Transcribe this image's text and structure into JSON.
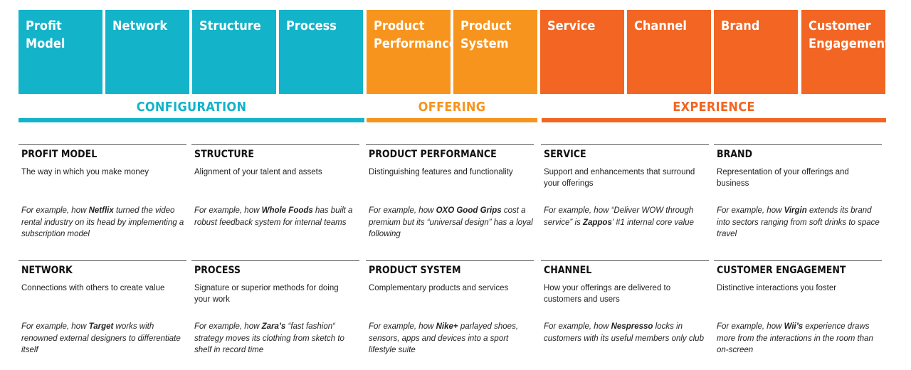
{
  "tiles": [
    {
      "label": "Profit\nModel",
      "color": "#13b3c9"
    },
    {
      "label": "Network",
      "color": "#13b3c9"
    },
    {
      "label": "Structure",
      "color": "#13b3c9"
    },
    {
      "label": "Process",
      "color": "#13b3c9"
    },
    {
      "label": "Product\nPerformance",
      "color": "#f7941d"
    },
    {
      "label": "Product\nSystem",
      "color": "#f7941d"
    },
    {
      "label": "Service",
      "color": "#f26522"
    },
    {
      "label": "Channel",
      "color": "#f26522"
    },
    {
      "label": "Brand",
      "color": "#f26522"
    },
    {
      "label": "Customer\nEngagement",
      "color": "#f26522"
    }
  ],
  "categories": [
    {
      "label": "CONFIGURATION",
      "color": "#13b3c9"
    },
    {
      "label": "OFFERING",
      "color": "#f7941d"
    },
    {
      "label": "EXPERIENCE",
      "color": "#f26522"
    }
  ],
  "cards": [
    {
      "title": "PROFIT MODEL",
      "description": "The way in which you make money",
      "example": [
        {
          "t": "For example, how "
        },
        {
          "t": "Netflix",
          "b": true
        },
        {
          "t": " turned the video rental industry on its head by implementing a subscription model"
        }
      ]
    },
    {
      "title": "STRUCTURE",
      "description": "Alignment of your talent and assets",
      "example": [
        {
          "t": "For example, how "
        },
        {
          "t": "Whole Foods",
          "b": true
        },
        {
          "t": " has built a robust feedback system for internal teams"
        }
      ]
    },
    {
      "title": "PRODUCT PERFORMANCE",
      "description": "Distinguishing features and functionality",
      "example": [
        {
          "t": "For example, how "
        },
        {
          "t": "OXO Good Grips",
          "b": true
        },
        {
          "t": " cost a premium but its “universal design” has a loyal following"
        }
      ]
    },
    {
      "title": "SERVICE",
      "description": "Support and enhancements that surround your offerings",
      "example": [
        {
          "t": "For example, how “Deliver WOW through service” is "
        },
        {
          "t": "Zappos",
          "b": true
        },
        {
          "t": "’ #1 internal core value"
        }
      ]
    },
    {
      "title": "BRAND",
      "description": "Representation of your offerings and business",
      "example": [
        {
          "t": "For example, how "
        },
        {
          "t": "Virgin",
          "b": true
        },
        {
          "t": " extends its brand into sectors ranging from soft drinks to space travel"
        }
      ]
    },
    {
      "title": "NETWORK",
      "description": "Connections with others to create value",
      "example": [
        {
          "t": "For example, how "
        },
        {
          "t": "Target",
          "b": true
        },
        {
          "t": " works with renowned external designers to differentiate itself"
        }
      ]
    },
    {
      "title": "PROCESS",
      "description": "Signature or superior methods for doing your work",
      "example": [
        {
          "t": "For example, how "
        },
        {
          "t": "Zara’s",
          "b": true
        },
        {
          "t": " “fast fashion“ strategy moves its clothing from sketch to shelf in record time"
        }
      ]
    },
    {
      "title": "PRODUCT SYSTEM",
      "description": "Complementary products and services",
      "example": [
        {
          "t": "For example, how "
        },
        {
          "t": "Nike+",
          "b": true
        },
        {
          "t": " parlayed shoes, sensors, apps and devices into a sport lifestyle suite"
        }
      ]
    },
    {
      "title": "CHANNEL",
      "description": "How your offerings are delivered to customers and users",
      "example": [
        {
          "t": "For example, how "
        },
        {
          "t": "Nespresso",
          "b": true
        },
        {
          "t": " locks in customers with its useful members only club"
        }
      ]
    },
    {
      "title": "CUSTOMER ENGAGEMENT",
      "description": "Distinctive interactions you foster",
      "example": [
        {
          "t": "For example, how "
        },
        {
          "t": "Wii’s",
          "b": true
        },
        {
          "t": " experience draws more from the interactions in the room than on-screen"
        }
      ]
    }
  ]
}
